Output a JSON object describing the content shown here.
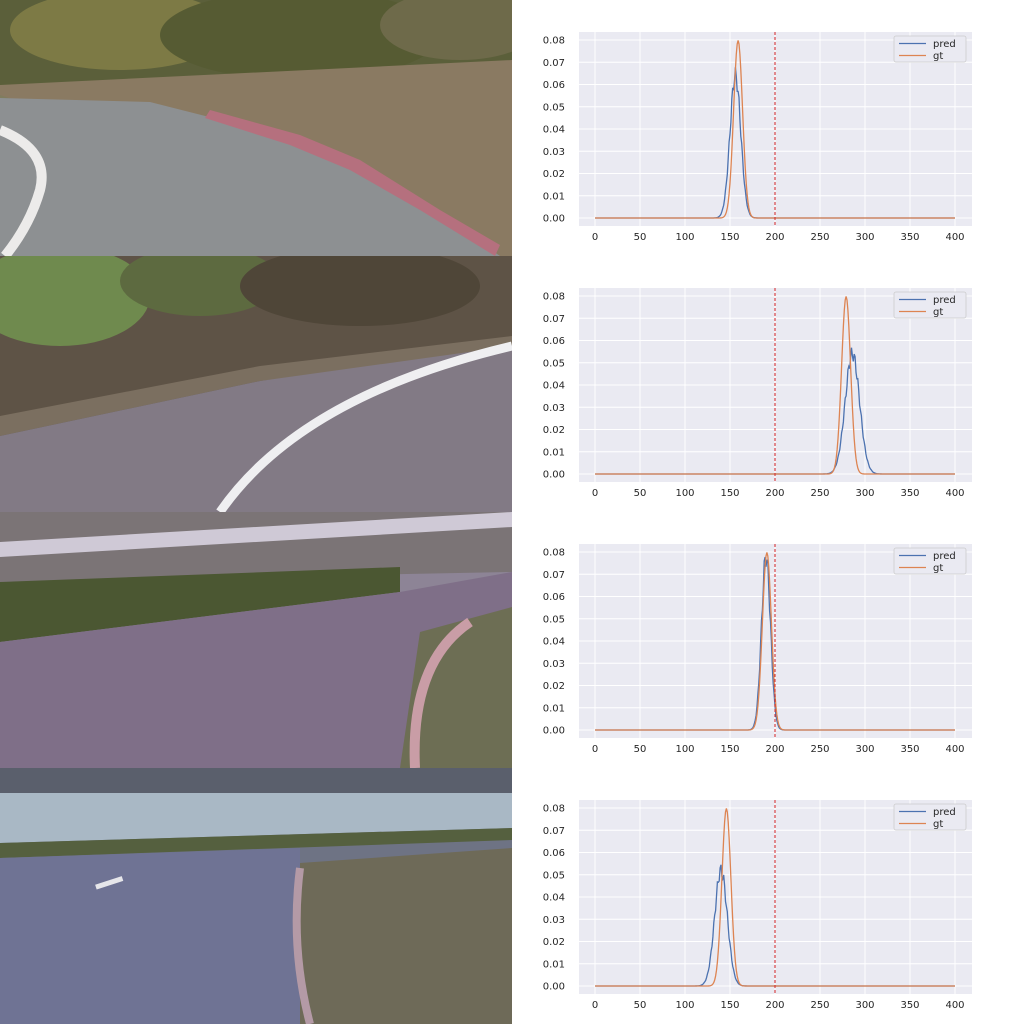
{
  "chart_data": [
    {
      "type": "line",
      "title": "",
      "xlabel": "",
      "ylabel": "",
      "xlim": [
        0,
        400
      ],
      "ylim": [
        0,
        0.08
      ],
      "xticks": [
        "0",
        "50",
        "100",
        "150",
        "200",
        "250",
        "300",
        "350",
        "400"
      ],
      "yticks": [
        "0.00",
        "0.01",
        "0.02",
        "0.03",
        "0.04",
        "0.05",
        "0.06",
        "0.07",
        "0.08"
      ],
      "grid": true,
      "legend_position": "top-right",
      "reference_line": {
        "x": 200,
        "style": "dashed",
        "color": "#d62728"
      },
      "series": [
        {
          "name": "pred",
          "color": "#4c72b0",
          "peak_x": 156,
          "peak_y": 0.064,
          "sigma": 6
        },
        {
          "name": "gt",
          "color": "#dd8452",
          "peak_x": 159,
          "peak_y": 0.0798,
          "sigma": 5
        }
      ]
    },
    {
      "type": "line",
      "title": "",
      "xlabel": "",
      "ylabel": "",
      "xlim": [
        0,
        400
      ],
      "ylim": [
        0,
        0.08
      ],
      "xticks": [
        "0",
        "50",
        "100",
        "150",
        "200",
        "250",
        "300",
        "350",
        "400"
      ],
      "yticks": [
        "0.00",
        "0.01",
        "0.02",
        "0.03",
        "0.04",
        "0.05",
        "0.06",
        "0.07",
        "0.08"
      ],
      "grid": true,
      "legend_position": "top-right",
      "reference_line": {
        "x": 200,
        "style": "dashed",
        "color": "#d62728"
      },
      "series": [
        {
          "name": "pred",
          "color": "#4c72b0",
          "peak_x": 286,
          "peak_y": 0.054,
          "sigma": 8
        },
        {
          "name": "gt",
          "color": "#dd8452",
          "peak_x": 279,
          "peak_y": 0.0798,
          "sigma": 5
        }
      ]
    },
    {
      "type": "line",
      "title": "",
      "xlabel": "",
      "ylabel": "",
      "xlim": [
        0,
        400
      ],
      "ylim": [
        0,
        0.08
      ],
      "xticks": [
        "0",
        "50",
        "100",
        "150",
        "200",
        "250",
        "300",
        "350",
        "400"
      ],
      "yticks": [
        "0.00",
        "0.01",
        "0.02",
        "0.03",
        "0.04",
        "0.05",
        "0.06",
        "0.07",
        "0.08"
      ],
      "grid": true,
      "legend_position": "top-right",
      "reference_line": {
        "x": 200,
        "style": "dashed",
        "color": "#d62728"
      },
      "series": [
        {
          "name": "pred",
          "color": "#4c72b0",
          "peak_x": 190,
          "peak_y": 0.078,
          "sigma": 5
        },
        {
          "name": "gt",
          "color": "#dd8452",
          "peak_x": 191,
          "peak_y": 0.0798,
          "sigma": 5
        }
      ]
    },
    {
      "type": "line",
      "title": "",
      "xlabel": "",
      "ylabel": "",
      "xlim": [
        0,
        400
      ],
      "ylim": [
        0,
        0.08
      ],
      "xticks": [
        "0",
        "50",
        "100",
        "150",
        "200",
        "250",
        "300",
        "350",
        "400"
      ],
      "yticks": [
        "0.00",
        "0.01",
        "0.02",
        "0.03",
        "0.04",
        "0.05",
        "0.06",
        "0.07",
        "0.08"
      ],
      "grid": true,
      "legend_position": "top-right",
      "reference_line": {
        "x": 200,
        "style": "dashed",
        "color": "#d62728"
      },
      "series": [
        {
          "name": "pred",
          "color": "#4c72b0",
          "peak_x": 140,
          "peak_y": 0.052,
          "sigma": 7
        },
        {
          "name": "gt",
          "color": "#dd8452",
          "peak_x": 146,
          "peak_y": 0.0798,
          "sigma": 5
        }
      ]
    }
  ],
  "theme": {
    "plot_background": "#eaeaf2",
    "grid_color": "#ffffff",
    "tick_text_color": "#262626"
  }
}
